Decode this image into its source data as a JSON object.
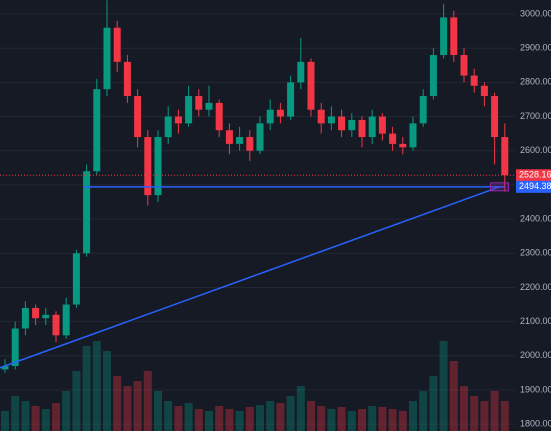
{
  "chart_data": {
    "type": "candlestick",
    "ylim": [
      1780,
      3041
    ],
    "yticks": [
      {
        "value": 1800,
        "label": "1800.00"
      },
      {
        "value": 1900,
        "label": "1900.00"
      },
      {
        "value": 2000,
        "label": "2000.00"
      },
      {
        "value": 2100,
        "label": "2100.00"
      },
      {
        "value": 2200,
        "label": "2200.00"
      },
      {
        "value": 2300,
        "label": "2300.00"
      },
      {
        "value": 2400,
        "label": "2400.00"
      },
      {
        "value": 2500,
        "label": "2500.00"
      },
      {
        "value": 2600,
        "label": "2600.00"
      },
      {
        "value": 2700,
        "label": "2700.00"
      },
      {
        "value": 2800,
        "label": "2800.00"
      },
      {
        "value": 2900,
        "label": "2900.00"
      },
      {
        "value": 3000,
        "label": "3000.00"
      }
    ],
    "grid": true,
    "up_color": "#089981",
    "down_color": "#f23645",
    "open": [
      1960,
      1970,
      2080,
      2140,
      2110,
      2120,
      2060,
      2150,
      2300,
      2540,
      2780,
      2960,
      2860,
      2760,
      2640,
      2470,
      2640,
      2700,
      2680,
      2760,
      2720,
      2740,
      2660,
      2620,
      2640,
      2600,
      2680,
      2720,
      2700,
      2800,
      2860,
      2720,
      2680,
      2700,
      2660,
      2690,
      2640,
      2700,
      2650,
      2620,
      2610,
      2680,
      2760,
      2880,
      2990,
      2880,
      2820,
      2790,
      2760,
      2640
    ],
    "high": [
      1990,
      2100,
      2160,
      2150,
      2140,
      2130,
      2170,
      2310,
      2560,
      2810,
      3040,
      2980,
      2880,
      2780,
      2660,
      2660,
      2730,
      2720,
      2790,
      2780,
      2790,
      2750,
      2680,
      2670,
      2660,
      2700,
      2750,
      2740,
      2820,
      2930,
      2870,
      2740,
      2730,
      2720,
      2710,
      2700,
      2720,
      2710,
      2670,
      2640,
      2700,
      2780,
      2900,
      3030,
      3010,
      2900,
      2840,
      2800,
      2770,
      2680
    ],
    "low": [
      1950,
      1960,
      2060,
      2090,
      2090,
      2040,
      2050,
      2140,
      2290,
      2530,
      2760,
      2830,
      2740,
      2610,
      2440,
      2450,
      2620,
      2650,
      2670,
      2700,
      2700,
      2640,
      2590,
      2600,
      2570,
      2590,
      2660,
      2680,
      2690,
      2780,
      2700,
      2650,
      2660,
      2640,
      2640,
      2610,
      2620,
      2630,
      2600,
      2590,
      2600,
      2670,
      2750,
      2870,
      2860,
      2800,
      2770,
      2730,
      2560,
      2480
    ],
    "close": [
      1970,
      2080,
      2140,
      2110,
      2120,
      2060,
      2150,
      2300,
      2540,
      2780,
      2960,
      2860,
      2760,
      2640,
      2470,
      2640,
      2700,
      2680,
      2760,
      2720,
      2740,
      2660,
      2620,
      2640,
      2600,
      2680,
      2720,
      2700,
      2800,
      2860,
      2720,
      2680,
      2700,
      2660,
      2690,
      2640,
      2700,
      2650,
      2620,
      2610,
      2680,
      2760,
      2880,
      2990,
      2880,
      2820,
      2790,
      2760,
      2640,
      2528.16
    ],
    "volume": [
      20,
      35,
      30,
      25,
      22,
      28,
      40,
      60,
      85,
      90,
      80,
      55,
      45,
      50,
      60,
      40,
      30,
      25,
      28,
      22,
      20,
      25,
      22,
      20,
      24,
      26,
      30,
      28,
      35,
      45,
      30,
      25,
      22,
      24,
      20,
      22,
      25,
      24,
      22,
      20,
      30,
      40,
      55,
      90,
      70,
      45,
      35,
      30,
      40,
      30
    ],
    "price_lines": [
      {
        "value": 2528.16,
        "color": "#f23645"
      },
      {
        "value": 2494.38,
        "color": "#2962ff"
      }
    ],
    "trendline": {
      "start": [
        -0.5,
        1965
      ],
      "end": [
        48.5,
        2494.38
      ],
      "color": "#2962ff"
    },
    "hline": {
      "start": 7.7,
      "end": 49,
      "value": 2494.38,
      "color": "#2962ff"
    }
  }
}
